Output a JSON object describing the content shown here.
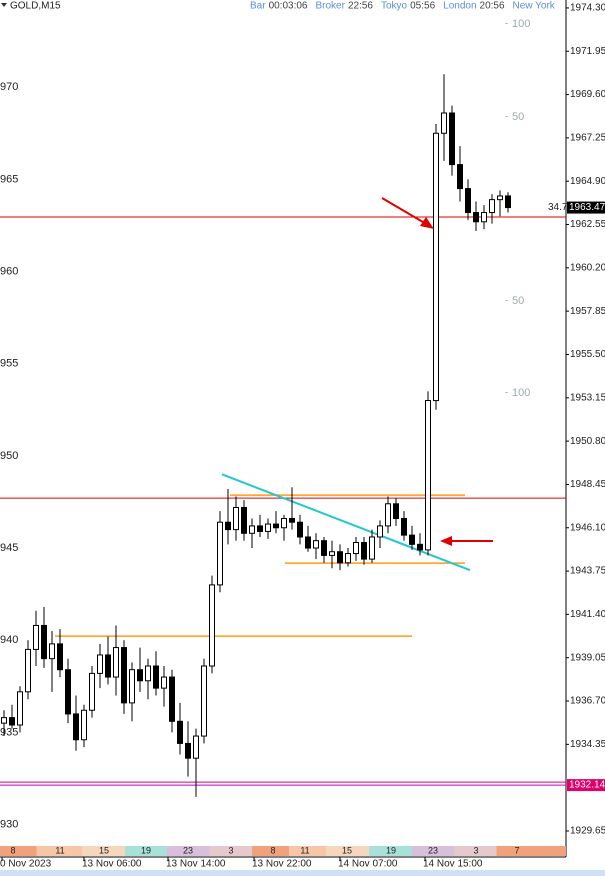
{
  "chart_data": {
    "type": "candlestick",
    "symbol": "GOLD,M15",
    "timers": [
      {
        "label": "Bar",
        "time": "00:03:06"
      },
      {
        "label": "Broker",
        "time": "22:56"
      },
      {
        "label": "Tokyo",
        "time": "05:56"
      },
      {
        "label": "London",
        "time": "20:56"
      },
      {
        "label": "New York"
      }
    ],
    "open": [
      1935.5,
      1935.8,
      1935.4,
      1937.2,
      1939.5,
      1940.8,
      1939.0,
      1939.8,
      1938.4,
      1936.0,
      1934.6,
      1936.2,
      1938.2,
      1939.2,
      1938.0,
      1939.6,
      1936.6,
      1938.4,
      1937.8,
      1938.6,
      1937.4,
      1938.0,
      1935.6,
      1934.4,
      1933.6,
      1934.8,
      1938.6,
      1943.0,
      1946.4,
      1946.0,
      1947.2,
      1945.8,
      1946.2,
      1945.9,
      1946.3,
      1946.1,
      1946.6,
      1946.4,
      1945.6,
      1945.0,
      1945.4,
      1944.6,
      1944.8,
      1944.2,
      1944.7,
      1945.3,
      1944.4,
      1945.6,
      1946.2,
      1947.4,
      1946.6,
      1945.7,
      1945.2,
      1944.9,
      1953.0,
      1967.5,
      1968.6,
      1965.8,
      1964.5,
      1963.2,
      1962.7,
      1963.2,
      1963.9,
      1964.1
    ],
    "high": [
      1936.2,
      1936.5,
      1937.5,
      1940.0,
      1941.6,
      1941.8,
      1940.5,
      1940.6,
      1939.0,
      1937.0,
      1936.5,
      1938.6,
      1939.8,
      1940.2,
      1940.8,
      1940.0,
      1938.8,
      1939.6,
      1939.0,
      1939.4,
      1938.6,
      1938.4,
      1936.6,
      1935.6,
      1935.2,
      1939.0,
      1943.5,
      1947.0,
      1948.2,
      1947.8,
      1947.6,
      1946.6,
      1946.8,
      1946.6,
      1947.0,
      1946.8,
      1948.3,
      1946.8,
      1946.2,
      1945.8,
      1945.6,
      1945.4,
      1945.2,
      1945.0,
      1945.6,
      1945.6,
      1946.0,
      1946.5,
      1947.8,
      1947.7,
      1947.0,
      1946.2,
      1945.8,
      1953.5,
      1968.0,
      1970.7,
      1969.0,
      1966.8,
      1965.0,
      1963.8,
      1963.6,
      1964.2,
      1964.4,
      1964.3
    ],
    "low": [
      1934.8,
      1935.2,
      1935.0,
      1936.8,
      1938.6,
      1938.5,
      1937.2,
      1938.0,
      1935.5,
      1934.0,
      1934.2,
      1935.8,
      1937.4,
      1937.6,
      1937.0,
      1936.0,
      1935.6,
      1937.2,
      1936.8,
      1937.0,
      1936.4,
      1935.0,
      1933.8,
      1932.6,
      1931.5,
      1934.4,
      1938.2,
      1942.6,
      1945.2,
      1945.4,
      1945.4,
      1945.0,
      1945.6,
      1945.5,
      1945.8,
      1945.4,
      1946.0,
      1945.2,
      1944.8,
      1944.4,
      1944.2,
      1943.9,
      1943.8,
      1944.0,
      1944.3,
      1944.1,
      1944.2,
      1945.0,
      1945.8,
      1946.2,
      1945.4,
      1944.9,
      1944.6,
      1944.6,
      1952.5,
      1966.0,
      1965.2,
      1963.8,
      1962.8,
      1962.2,
      1962.3,
      1962.6,
      1963.0,
      1963.2
    ],
    "close": [
      1935.8,
      1935.4,
      1937.2,
      1939.5,
      1940.8,
      1939.0,
      1939.8,
      1938.4,
      1936.0,
      1934.6,
      1936.2,
      1938.2,
      1939.2,
      1938.0,
      1939.6,
      1936.6,
      1938.4,
      1937.8,
      1938.6,
      1937.4,
      1938.0,
      1935.6,
      1934.4,
      1933.6,
      1934.8,
      1938.6,
      1943.0,
      1946.4,
      1946.0,
      1947.2,
      1945.8,
      1946.2,
      1945.9,
      1946.3,
      1946.1,
      1946.6,
      1946.4,
      1945.6,
      1945.0,
      1945.4,
      1944.6,
      1944.8,
      1944.2,
      1944.7,
      1945.3,
      1944.4,
      1945.6,
      1946.2,
      1947.4,
      1946.6,
      1945.7,
      1945.2,
      1944.9,
      1953.0,
      1967.5,
      1968.6,
      1965.8,
      1964.5,
      1963.2,
      1962.7,
      1963.2,
      1963.9,
      1964.1,
      1963.47
    ],
    "ylim": [
      1928.89,
      1974.73
    ],
    "yticks": [
      {
        "value": 1974.3,
        "label": "1974.30"
      },
      1971.95,
      {
        "value": 1969.6,
        "label": "1969.60"
      },
      1967.25,
      {
        "value": 1964.9,
        "label": "1964.90"
      },
      1962.55,
      {
        "value": 1960.2,
        "label": "1960.20"
      },
      1957.85,
      {
        "value": 1955.5,
        "label": "1955.50"
      },
      1953.15,
      {
        "value": 1950.8,
        "label": "1950.80"
      },
      1948.45,
      {
        "value": 1946.1,
        "label": "1946.10"
      },
      1943.75,
      {
        "value": 1941.4,
        "label": "1941.40"
      },
      1939.05,
      {
        "value": 1936.7,
        "label": "1936.70"
      },
      1934.35,
      1929.65
    ],
    "left_ticks": [
      {
        "value": 1970,
        "label": "970"
      },
      {
        "value": 1965,
        "label": "965"
      },
      {
        "value": 1960,
        "label": "960"
      },
      {
        "value": 1955,
        "label": "955"
      },
      {
        "value": 1950,
        "label": "950"
      },
      {
        "value": 1945,
        "label": "945"
      },
      {
        "value": 1940,
        "label": "940"
      },
      {
        "value": 1935,
        "label": "935"
      },
      {
        "value": 1930,
        "label": "930"
      }
    ],
    "hlines": [
      {
        "value": 1962.96,
        "color": "#e00000"
      },
      {
        "value": 1947.71,
        "color": "#e00000"
      },
      {
        "value": 1932.3,
        "color": "#e0006a"
      },
      {
        "value": 1932.14,
        "color": "#b000d0"
      }
    ],
    "orange_levels": [
      1947.87,
      1944.18,
      1940.22
    ],
    "trendline": [
      1949.0,
      1943.8
    ],
    "price": 1963.47,
    "price_label": "1963.47",
    "spread_label": "34.7",
    "level_price": 1932.14,
    "level_price_label": "1932.14",
    "level_marks": [
      100,
      50,
      50,
      100
    ],
    "session_hours": [
      8,
      11,
      15,
      19,
      23,
      3,
      8,
      11,
      15,
      19,
      23,
      3,
      7
    ],
    "x_labels": [
      "0 Nov 2023",
      "13 Nov 06:00",
      "13 Nov 14:00",
      "13 Nov 22:00",
      "14 Nov 07:00",
      "14 Nov 15:00"
    ]
  }
}
